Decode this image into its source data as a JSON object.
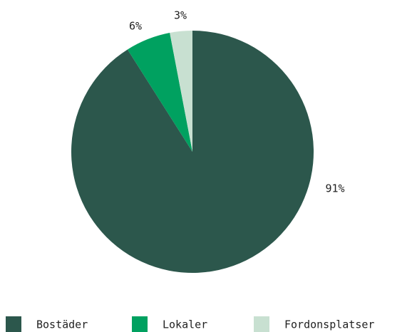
{
  "chart_data": {
    "type": "pie",
    "categories": [
      "Bostäder",
      "Lokaler",
      "Fordonsplatser"
    ],
    "values": [
      91,
      6,
      3
    ],
    "value_labels": [
      "91%",
      "6%",
      "3%"
    ],
    "colors": [
      "#2c574c",
      "#00a160",
      "#c8e0d1"
    ],
    "legend": "bottom"
  }
}
